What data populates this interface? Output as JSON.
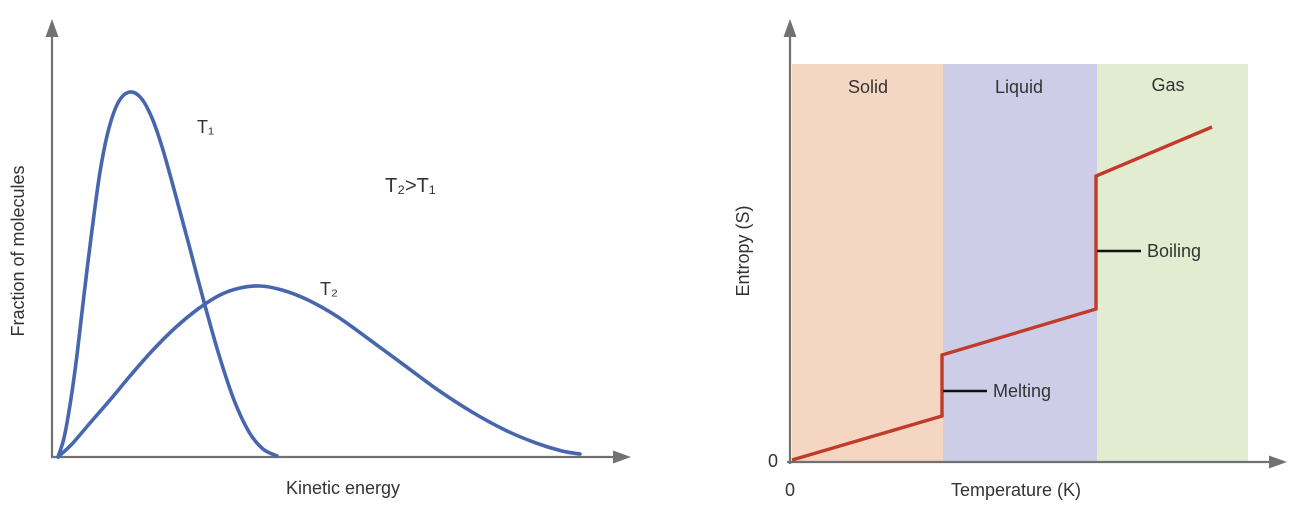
{
  "figure": {
    "background": "#ffffff",
    "axis_color": "#717171",
    "text_color": "#333333"
  },
  "chart_data": [
    {
      "id": "kinetic-energy-distribution",
      "type": "line",
      "xlabel": "Kinetic energy",
      "ylabel": "Fraction of molecules",
      "annotation": "T₂>T₁",
      "axis_ticks": "none",
      "grid": false,
      "legend_position": "inline-labels",
      "series": [
        {
          "name": "T₁",
          "label": "T₁",
          "color": "#4766ad",
          "shape": "tall narrow peak at low kinetic energy",
          "points": [
            [
              58,
              457
            ],
            [
              64,
              438
            ],
            [
              70,
              405
            ],
            [
              77,
              355
            ],
            [
              84,
              295
            ],
            [
              92,
              230
            ],
            [
              100,
              172
            ],
            [
              109,
              128
            ],
            [
              119,
              101
            ],
            [
              130,
              92
            ],
            [
              141,
              98
            ],
            [
              152,
              118
            ],
            [
              163,
              150
            ],
            [
              175,
              193
            ],
            [
              189,
              245
            ],
            [
              204,
              302
            ],
            [
              219,
              355
            ],
            [
              234,
              400
            ],
            [
              249,
              432
            ],
            [
              263,
              449
            ],
            [
              277,
              456
            ]
          ]
        },
        {
          "name": "T₂",
          "label": "T₂",
          "color": "#4766ad",
          "shape": "broad low peak shifted to higher kinetic energy with long tail",
          "points": [
            [
              58,
              457
            ],
            [
              72,
              444
            ],
            [
              90,
              423
            ],
            [
              110,
              400
            ],
            [
              130,
              376
            ],
            [
              152,
              351
            ],
            [
              175,
              328
            ],
            [
              198,
              309
            ],
            [
              220,
              295
            ],
            [
              240,
              288
            ],
            [
              260,
              286
            ],
            [
              282,
              290
            ],
            [
              308,
              300
            ],
            [
              338,
              317
            ],
            [
              370,
              340
            ],
            [
              404,
              365
            ],
            [
              438,
              390
            ],
            [
              472,
              412
            ],
            [
              505,
              430
            ],
            [
              536,
              443
            ],
            [
              562,
              451
            ],
            [
              580,
              454
            ]
          ]
        }
      ]
    },
    {
      "id": "entropy-vs-temperature",
      "type": "line",
      "xlabel": "Temperature (K)",
      "ylabel": "Entropy (S)",
      "x_origin_label": "0",
      "y_origin_label": "0",
      "grid": false,
      "regions": [
        {
          "label": "Solid",
          "color": "#f5d6c3"
        },
        {
          "label": "Liquid",
          "color": "#cdcde8"
        },
        {
          "label": "Gas",
          "color": "#e2ecd0"
        }
      ],
      "series": [
        {
          "name": "Entropy",
          "color": "#c23b2a",
          "shape": "rising line with vertical jumps at phase-change boundaries",
          "points": [
            [
              792,
              460
            ],
            [
              942,
              416
            ],
            [
              942,
              355
            ],
            [
              1096,
              309
            ],
            [
              1096,
              176
            ],
            [
              1212,
              127
            ]
          ]
        }
      ],
      "phase_changes": [
        {
          "label": "Melting",
          "boundary": "Solid/Liquid"
        },
        {
          "label": "Boiling",
          "boundary": "Liquid/Gas"
        }
      ]
    }
  ]
}
